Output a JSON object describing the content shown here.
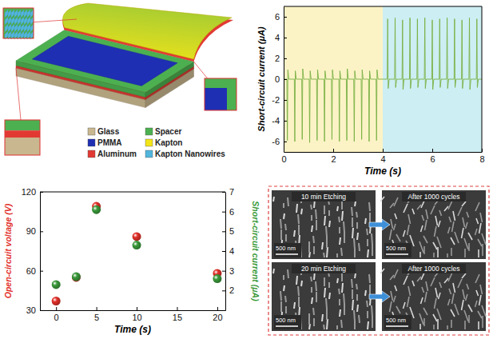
{
  "schematic": {
    "legend": [
      {
        "label": "Glass",
        "color": "#c9b78f"
      },
      {
        "label": "Spacer",
        "color": "#4cb050"
      },
      {
        "label": "PMMA",
        "color": "#1f2fb3"
      },
      {
        "label": "Kapton",
        "color": "#f3e418"
      },
      {
        "label": "Aluminum",
        "color": "#e23a33"
      },
      {
        "label": "Kapton Nanowires",
        "color": "#52b6dc"
      }
    ]
  },
  "chart_data": [
    {
      "type": "line",
      "x_label": "Time (s)",
      "y_label": "Short-circuit current (μA)",
      "xlim": [
        0,
        8
      ],
      "xticks": [
        0,
        2,
        4,
        6,
        8
      ],
      "ylim": [
        -7,
        7
      ],
      "yticks": [
        -6,
        -4,
        -2,
        0,
        2,
        4,
        6
      ],
      "shaded_regions": [
        {
          "x0": 0,
          "x1": 4,
          "color": "#fbf3c6"
        },
        {
          "x0": 4,
          "x1": 8,
          "color": "#cdeef3"
        }
      ],
      "x": [
        0,
        0.13,
        0.15,
        0.17,
        0.21,
        0.43,
        0.45,
        0.47,
        0.51,
        0.73,
        0.75,
        0.77,
        0.81,
        1.03,
        1.05,
        1.07,
        1.11,
        1.33,
        1.35,
        1.37,
        1.41,
        1.63,
        1.65,
        1.67,
        1.71,
        1.93,
        1.95,
        1.97,
        2.01,
        2.23,
        2.25,
        2.27,
        2.31,
        2.53,
        2.55,
        2.57,
        2.61,
        2.83,
        2.85,
        2.87,
        2.91,
        3.13,
        3.15,
        3.17,
        3.21,
        3.43,
        3.45,
        3.47,
        3.51,
        3.73,
        3.75,
        3.77,
        3.81,
        4.18,
        4.2,
        4.22,
        4.26,
        4.48,
        4.5,
        4.52,
        4.56,
        4.78,
        4.8,
        4.82,
        4.86,
        5.08,
        5.1,
        5.12,
        5.16,
        5.38,
        5.4,
        5.42,
        5.46,
        5.68,
        5.7,
        5.72,
        5.76,
        5.98,
        6.0,
        6.02,
        6.06,
        6.28,
        6.3,
        6.32,
        6.36,
        6.58,
        6.6,
        6.62,
        6.66,
        6.88,
        6.9,
        6.92,
        6.96,
        7.18,
        7.2,
        7.22,
        7.26,
        7.48,
        7.5,
        7.52,
        7.56,
        7.78,
        7.8,
        7.82,
        7.86,
        8
      ],
      "series": [
        {
          "color": "#78b043",
          "values": [
            0,
            0,
            -5.9,
            0.9,
            0,
            0,
            -6.0,
            0.8,
            0,
            0,
            -5.8,
            1.0,
            0,
            0,
            -6.1,
            0.8,
            0,
            0,
            -5.9,
            0.9,
            0,
            0,
            -6.0,
            0.8,
            0,
            0,
            -5.8,
            0.9,
            0,
            0,
            -6.0,
            0.8,
            0,
            0,
            -5.9,
            1.0,
            0,
            0,
            -6.0,
            0.8,
            0,
            0,
            -5.8,
            0.9,
            0,
            0,
            -6.0,
            0.8,
            0,
            0,
            -5.9,
            0.9,
            0,
            0,
            5.8,
            -0.9,
            0,
            0,
            5.9,
            -0.8,
            0,
            0,
            5.7,
            -1.0,
            0,
            0,
            5.9,
            -0.9,
            0,
            0,
            5.8,
            -0.8,
            0,
            0,
            5.9,
            -0.9,
            0,
            0,
            5.7,
            -1.0,
            0,
            0,
            5.8,
            -0.8,
            0,
            0,
            5.9,
            -0.9,
            0,
            0,
            5.8,
            -0.8,
            0,
            0,
            5.7,
            -0.9,
            0,
            0,
            5.9,
            -1.0,
            0,
            0,
            5.8,
            -0.8,
            0,
            0
          ]
        }
      ]
    },
    {
      "type": "scatter",
      "x_label": "Time (s)",
      "y_label": "Open-circuit voltage (V)",
      "y2_label": "Short-circuit current (μA)",
      "x": [
        0,
        2.5,
        5,
        10,
        20
      ],
      "xlim": [
        -2,
        21
      ],
      "xticks": [
        0,
        5,
        10,
        15,
        20
      ],
      "ylim": [
        30,
        120
      ],
      "yticks": [
        30,
        60,
        90,
        120
      ],
      "y2lim": [
        1,
        7
      ],
      "y2ticks": [
        2,
        3,
        4,
        5,
        6,
        7
      ],
      "series": [
        {
          "color": "#e2302a",
          "marker": "circle",
          "values": [
            37,
            55,
            109,
            86,
            58
          ]
        },
        {
          "color": "#3a9a3a",
          "marker": "circle",
          "axis": "y2",
          "values": [
            2.3,
            2.7,
            6.1,
            4.3,
            2.6
          ]
        }
      ]
    }
  ],
  "sem_images": {
    "panels": [
      {
        "label": "10 min Etching",
        "scale_bar": "500 nm"
      },
      {
        "label": "After 1000 cycles",
        "scale_bar": "500 nm"
      },
      {
        "label": "20 min Etching",
        "scale_bar": "500 nm"
      },
      {
        "label": "After 1000 cycles",
        "scale_bar": "500 nm"
      }
    ]
  }
}
